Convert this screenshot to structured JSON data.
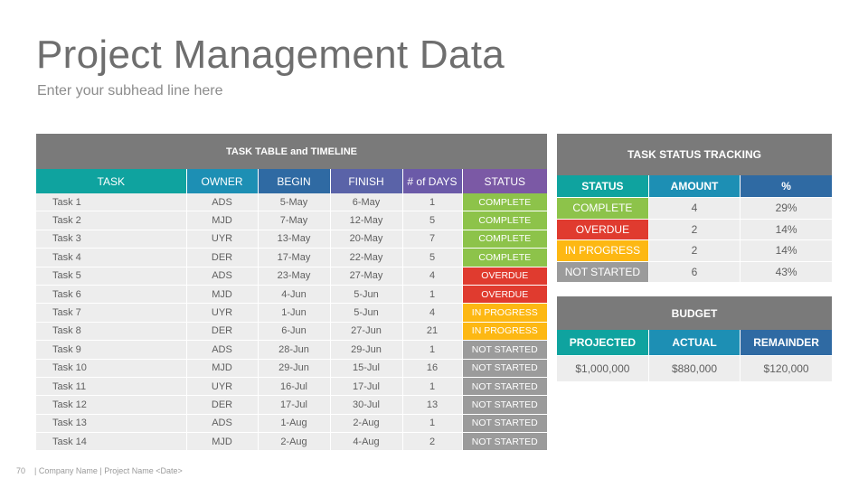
{
  "title": "Project Management Data",
  "subhead": "Enter your subhead line here",
  "task_table": {
    "band": "TASK TABLE and TIMELINE",
    "headers": [
      "TASK",
      "OWNER",
      "BEGIN",
      "FINISH",
      "# of DAYS",
      "STATUS"
    ],
    "rows": [
      {
        "task": "Task 1",
        "owner": "ADS",
        "begin": "5-May",
        "finish": "6-May",
        "days": "1",
        "status": "COMPLETE"
      },
      {
        "task": "Task 2",
        "owner": "MJD",
        "begin": "7-May",
        "finish": "12-May",
        "days": "5",
        "status": "COMPLETE"
      },
      {
        "task": "Task 3",
        "owner": "UYR",
        "begin": "13-May",
        "finish": "20-May",
        "days": "7",
        "status": "COMPLETE"
      },
      {
        "task": "Task 4",
        "owner": "DER",
        "begin": "17-May",
        "finish": "22-May",
        "days": "5",
        "status": "COMPLETE"
      },
      {
        "task": "Task 5",
        "owner": "ADS",
        "begin": "23-May",
        "finish": "27-May",
        "days": "4",
        "status": "OVERDUE"
      },
      {
        "task": "Task 6",
        "owner": "MJD",
        "begin": "4-Jun",
        "finish": "5-Jun",
        "days": "1",
        "status": "OVERDUE"
      },
      {
        "task": "Task 7",
        "owner": "UYR",
        "begin": "1-Jun",
        "finish": "5-Jun",
        "days": "4",
        "status": "IN PROGRESS"
      },
      {
        "task": "Task 8",
        "owner": "DER",
        "begin": "6-Jun",
        "finish": "27-Jun",
        "days": "21",
        "status": "IN PROGRESS"
      },
      {
        "task": "Task 9",
        "owner": "ADS",
        "begin": "28-Jun",
        "finish": "29-Jun",
        "days": "1",
        "status": "NOT STARTED"
      },
      {
        "task": "Task 10",
        "owner": "MJD",
        "begin": "29-Jun",
        "finish": "15-Jul",
        "days": "16",
        "status": "NOT STARTED"
      },
      {
        "task": "Task 11",
        "owner": "UYR",
        "begin": "16-Jul",
        "finish": "17-Jul",
        "days": "1",
        "status": "NOT STARTED"
      },
      {
        "task": "Task 12",
        "owner": "DER",
        "begin": "17-Jul",
        "finish": "30-Jul",
        "days": "13",
        "status": "NOT STARTED"
      },
      {
        "task": "Task 13",
        "owner": "ADS",
        "begin": "1-Aug",
        "finish": "2-Aug",
        "days": "1",
        "status": "NOT STARTED"
      },
      {
        "task": "Task 14",
        "owner": "MJD",
        "begin": "2-Aug",
        "finish": "4-Aug",
        "days": "2",
        "status": "NOT STARTED"
      }
    ]
  },
  "status_tracking": {
    "band": "TASK STATUS TRACKING",
    "headers": [
      "STATUS",
      "AMOUNT",
      "%"
    ],
    "rows": [
      {
        "status": "COMPLETE",
        "amount": "4",
        "pct": "29%"
      },
      {
        "status": "OVERDUE",
        "amount": "2",
        "pct": "14%"
      },
      {
        "status": "IN PROGRESS",
        "amount": "2",
        "pct": "14%"
      },
      {
        "status": "NOT STARTED",
        "amount": "6",
        "pct": "43%"
      }
    ]
  },
  "budget": {
    "band": "BUDGET",
    "headers": [
      "PROJECTED",
      "ACTUAL",
      "REMAINDER"
    ],
    "values": [
      "$1,000,000",
      "$880,000",
      "$120,000"
    ]
  },
  "footer": {
    "page": "70",
    "text": "| Company Name | Project Name <Date>"
  },
  "colors": {
    "complete": "#8dc34a",
    "overdue": "#e03b2f",
    "in_progress": "#fdb813",
    "not_started": "#9b9b9b",
    "band": "#7a7a7a"
  }
}
